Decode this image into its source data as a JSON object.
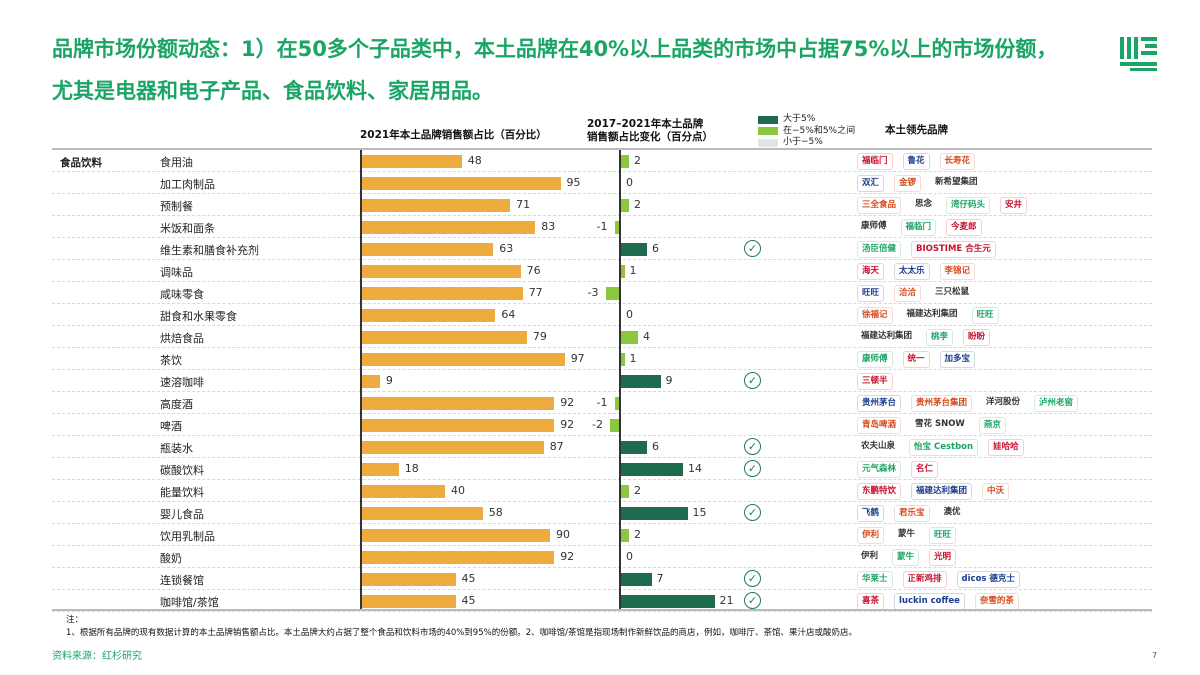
{
  "title": "品牌市场份额动态：1）在50多个子品类中，本土品牌在40%以上品类的市场中占据75%以上的市场份额，尤其是电器和电子产品、食品饮料、家居用品。",
  "headers": {
    "share": "2021年本土品牌销售额占比（百分比）",
    "change_line1": "2017–2021年本土品牌",
    "change_line2": "销售额占比变化（百分点）",
    "brands": "本土领先品牌"
  },
  "legend": [
    {
      "label": "大于5%",
      "color": "#1e6b4e"
    },
    {
      "label": "在−5%和5%之间",
      "color": "#8dc63f"
    },
    {
      "label": "小于−5%",
      "color": "#e3e3e3"
    }
  ],
  "chart_data": {
    "type": "bar",
    "group": "食品饮料",
    "categories": [
      "食用油",
      "加工肉制品",
      "预制餐",
      "米饭和面条",
      "维生素和膳食补充剂",
      "调味品",
      "咸味零食",
      "甜食和水果零食",
      "烘焙食品",
      "茶饮",
      "速溶咖啡",
      "高度酒",
      "啤酒",
      "瓶装水",
      "碳酸饮料",
      "能量饮料",
      "婴儿食品",
      "饮用乳制品",
      "酸奶",
      "连锁餐馆",
      "咖啡馆/茶馆"
    ],
    "series": [
      {
        "name": "2021年本土品牌销售额占比（百分比）",
        "values": [
          48,
          95,
          71,
          83,
          63,
          76,
          77,
          64,
          79,
          97,
          9,
          92,
          92,
          87,
          18,
          40,
          58,
          90,
          92,
          45,
          45
        ]
      },
      {
        "name": "2017–2021年本土品牌销售额占比变化（百分点）",
        "values": [
          2,
          0,
          2,
          -1,
          6,
          1,
          -3,
          0,
          4,
          1,
          9,
          -1,
          -2,
          6,
          14,
          2,
          15,
          2,
          0,
          7,
          21
        ]
      }
    ],
    "xlim_share": [
      0,
      100
    ]
  },
  "brands": [
    [
      "福临门",
      "鲁花",
      "长寿花"
    ],
    [
      "双汇",
      "金锣",
      "新希望集团"
    ],
    [
      "三全食品",
      "思念",
      "湾仔码头",
      "安井"
    ],
    [
      "康师傅",
      "福临门",
      "今麦郎"
    ],
    [
      "汤臣倍健",
      "BIOSTIME 合生元"
    ],
    [
      "海天",
      "太太乐",
      "李锦记"
    ],
    [
      "旺旺",
      "洽洽",
      "三只松鼠"
    ],
    [
      "徐福记",
      "福建达利集团",
      "旺旺"
    ],
    [
      "福建达利集团",
      "桃李",
      "盼盼"
    ],
    [
      "康师傅",
      "统一",
      "加多宝"
    ],
    [
      "三顿半"
    ],
    [
      "贵州茅台",
      "贵州茅台集团",
      "洋河股份",
      "泸州老窖"
    ],
    [
      "青岛啤酒",
      "雪花 SNOW",
      "燕京"
    ],
    [
      "农夫山泉",
      "怡宝 Cestbon",
      "娃哈哈"
    ],
    [
      "元气森林",
      "名仁"
    ],
    [
      "东鹏特饮",
      "福建达利集团",
      "中沃"
    ],
    [
      "飞鹤",
      "君乐宝",
      "澳优"
    ],
    [
      "伊利",
      "蒙牛",
      "旺旺"
    ],
    [
      "伊利",
      "蒙牛",
      "光明"
    ],
    [
      "华莱士",
      "正新鸡排",
      "dicos 德克士"
    ],
    [
      "喜茶",
      "luckin coffee",
      "奈雪的茶"
    ]
  ],
  "notes": {
    "label": "注：",
    "text": "1、根据所有品牌的现有数据计算的本土品牌销售额占比。本土品牌大约占据了整个食品和饮料市场的40%到95%的份额。2、咖啡馆/茶馆是指现场制作新鲜饮品的商店，例如，咖啡厅、茶馆、果汁店或酸奶店。"
  },
  "source": "资料来源：红杉研究",
  "page": "7",
  "check_icon": "check-circle-icon"
}
